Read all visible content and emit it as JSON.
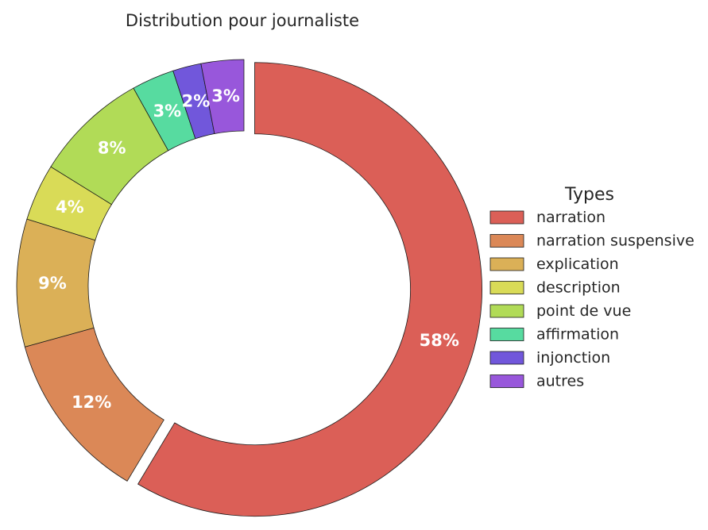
{
  "chart_data": {
    "type": "pie",
    "variant": "donut",
    "title": "Distribution pour journaliste",
    "legend_title": "Types",
    "legend_position": "right",
    "start_angle_deg": 90,
    "direction": "clockwise",
    "exploded_category": "narration",
    "categories": [
      "narration",
      "narration suspensive",
      "explication",
      "description",
      "point de vue",
      "affirmation",
      "injonction",
      "autres"
    ],
    "values": [
      58,
      12,
      9,
      4,
      8,
      3,
      2,
      3
    ],
    "labels": [
      "58%",
      "12%",
      "9%",
      "4%",
      "8%",
      "3%",
      "2%",
      "3%"
    ],
    "colors": [
      "#db5f57",
      "#db8857",
      "#dbb057",
      "#d9db57",
      "#b1db57",
      "#57dba0",
      "#7157db",
      "#9857db"
    ]
  }
}
